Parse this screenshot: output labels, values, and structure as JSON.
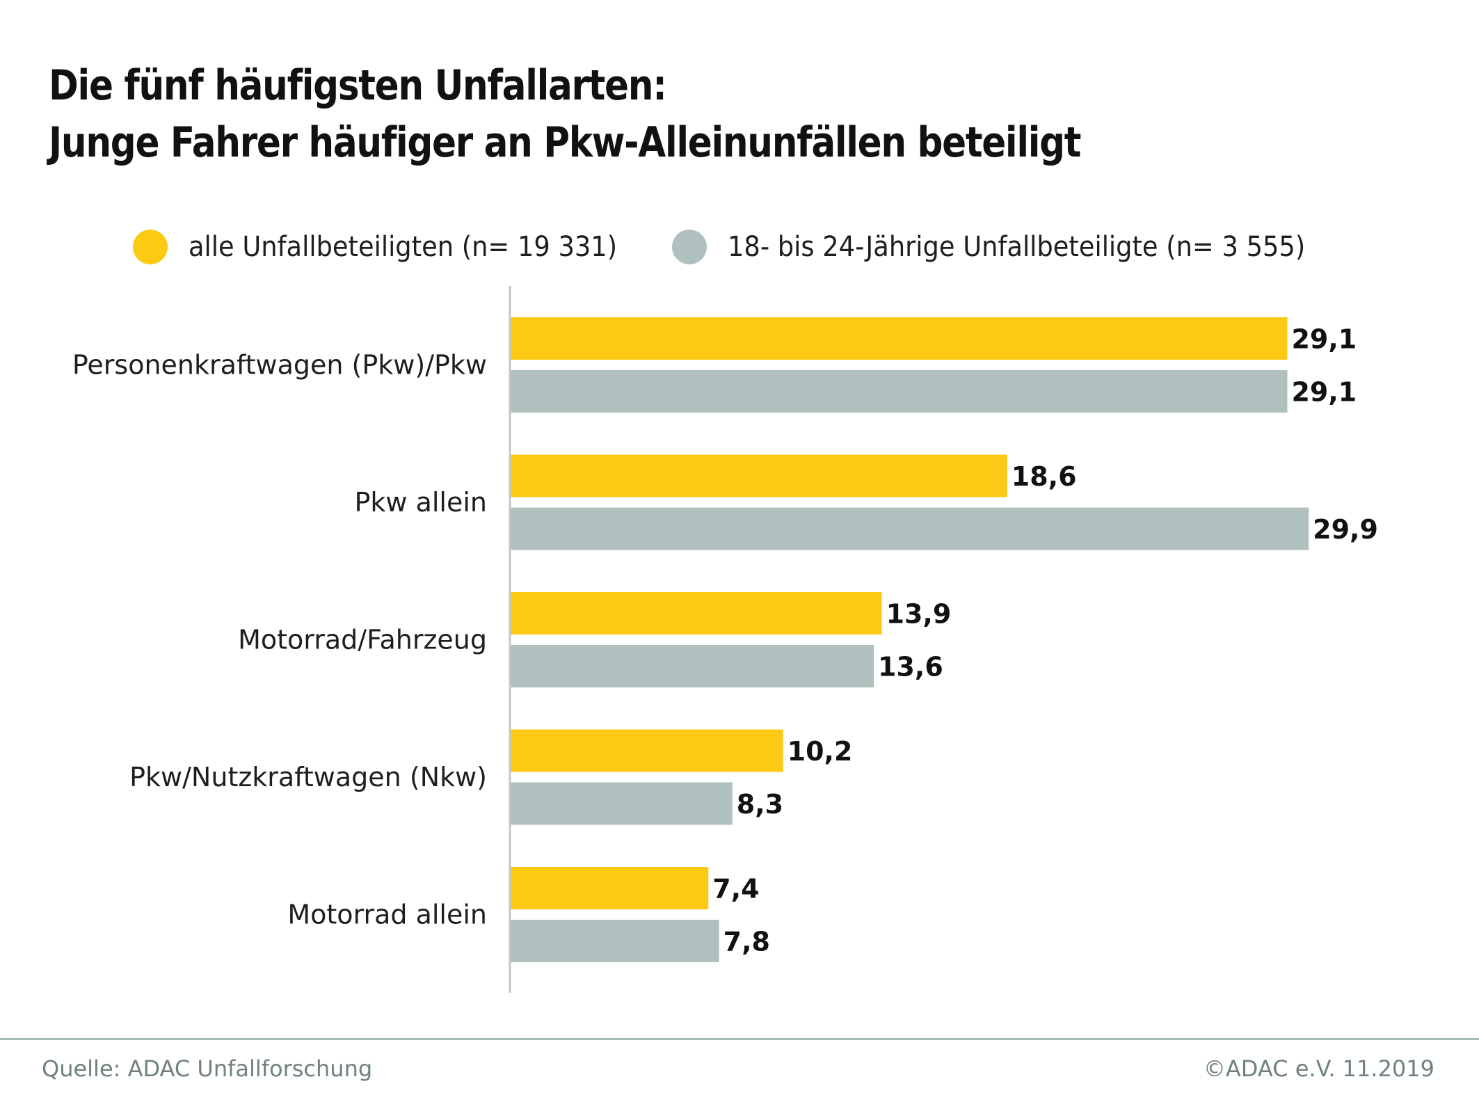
{
  "title": {
    "line1": "Die fünf häufigsten Unfallarten:",
    "line2": "Junge Fahrer häufiger an Pkw-Alleinunfällen beteiligt"
  },
  "legend": [
    {
      "label": "alle Unfallbeteiligten (n= 19 331)",
      "color": "#FCC914"
    },
    {
      "label": "18- bis 24-Jährige Unfallbeteiligte (n= 3 555)",
      "color": "#AFC0BE"
    }
  ],
  "footer": {
    "source": "Quelle:  ADAC Unfallforschung",
    "copyright": "©ADAC e.V. 11.2019"
  },
  "chart_data": {
    "type": "bar",
    "orientation": "horizontal",
    "title": "Die fünf häufigsten Unfallarten: Junge Fahrer häufiger an Pkw-Alleinunfällen beteiligt",
    "xlabel": "",
    "ylabel": "",
    "xlim": [
      0,
      30
    ],
    "grid": false,
    "legend_position": "top",
    "categories": [
      "Personenkraftwagen (Pkw)/Pkw",
      "Pkw allein",
      "Motorrad/Fahrzeug",
      "Pkw/Nutzkraftwagen (Nkw)",
      "Motorrad allein"
    ],
    "series": [
      {
        "name": "alle Unfallbeteiligten (n= 19 331)",
        "color": "#FCC914",
        "values": [
          29.1,
          18.6,
          13.9,
          10.2,
          7.4
        ],
        "labels": [
          "29,1",
          "18,6",
          "13,9",
          "10,2",
          "7,4"
        ]
      },
      {
        "name": "18- bis 24-Jährige Unfallbeteiligte (n= 3 555)",
        "color": "#AFC0BE",
        "values": [
          29.1,
          29.9,
          13.6,
          8.3,
          7.8
        ],
        "labels": [
          "29,1",
          "29,9",
          "13,6",
          "8,3",
          "7,8"
        ]
      }
    ]
  }
}
